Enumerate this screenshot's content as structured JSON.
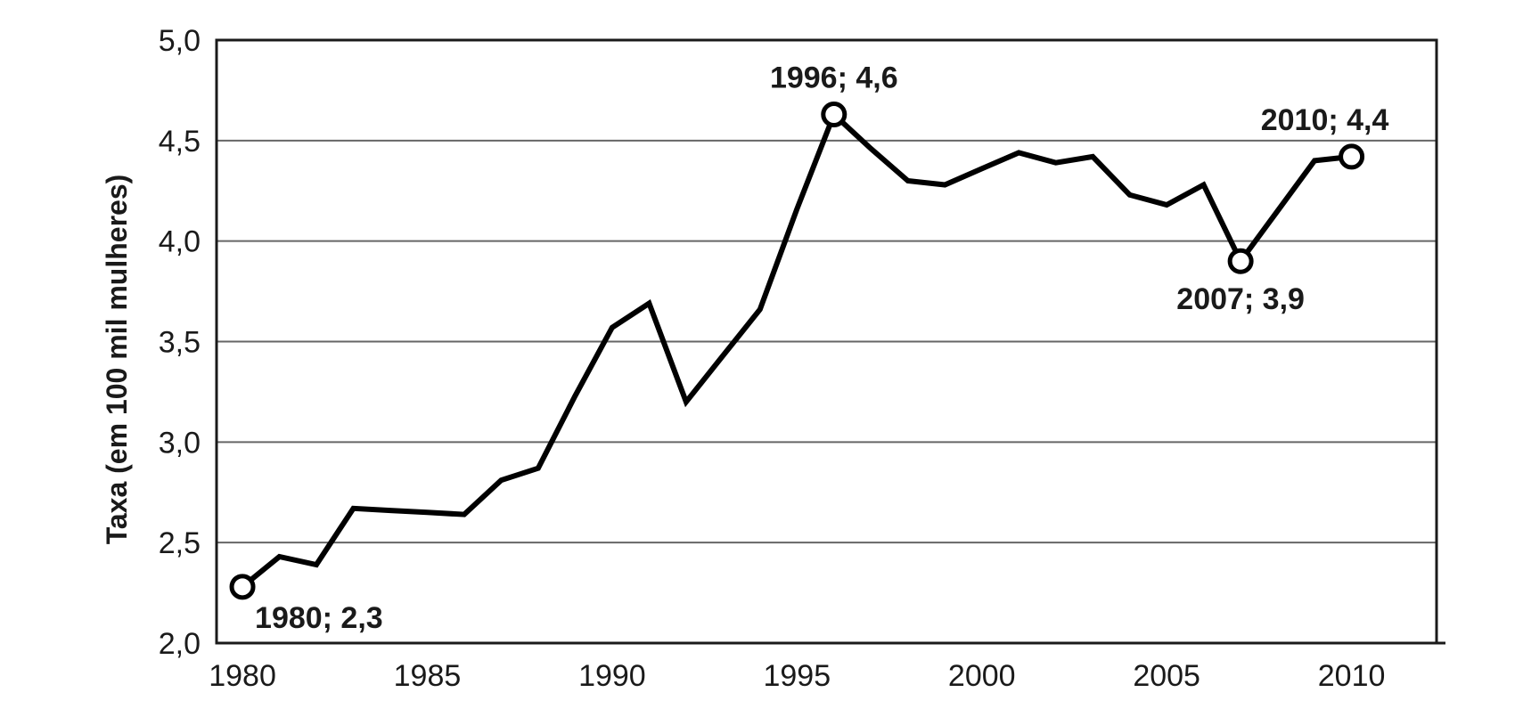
{
  "chart_data": {
    "type": "line",
    "title": "",
    "xlabel": "",
    "ylabel": "Taxa (em 100 mil mulheres)",
    "xlim": [
      1979.3,
      2012.3
    ],
    "ylim": [
      2.0,
      5.0
    ],
    "x_ticks": [
      1980,
      1985,
      1990,
      1995,
      2000,
      2005,
      2010
    ],
    "x_tick_labels": [
      "1980",
      "1985",
      "1990",
      "1995",
      "2000",
      "2005",
      "2010"
    ],
    "y_ticks": [
      2.0,
      2.5,
      3.0,
      3.5,
      4.0,
      4.5,
      5.0
    ],
    "y_tick_labels": [
      "2,0",
      "2,5",
      "3,0",
      "3,5",
      "4,0",
      "4,5",
      "5,0"
    ],
    "grid": true,
    "series": [
      {
        "x": [
          1980,
          1981,
          1982,
          1983,
          1984,
          1985,
          1986,
          1987,
          1988,
          1989,
          1990,
          1991,
          1992,
          1993,
          1994,
          1995,
          1996,
          1997,
          1998,
          1999,
          2000,
          2001,
          2002,
          2003,
          2004,
          2005,
          2006,
          2007,
          2008,
          2009,
          2010
        ],
        "values": [
          2.28,
          2.43,
          2.39,
          2.67,
          2.66,
          2.65,
          2.64,
          2.81,
          2.87,
          3.23,
          3.57,
          3.69,
          3.2,
          3.43,
          3.66,
          4.16,
          4.63,
          4.46,
          4.3,
          4.28,
          4.36,
          4.44,
          4.39,
          4.42,
          4.23,
          4.18,
          4.28,
          3.9,
          4.15,
          4.4,
          4.42
        ]
      }
    ],
    "annotations": [
      {
        "x": 1980,
        "y": 2.28,
        "text": "1980; 2,3",
        "position": "below-right"
      },
      {
        "x": 1996,
        "y": 4.63,
        "text": "1996; 4,6",
        "position": "above"
      },
      {
        "x": 2007,
        "y": 3.9,
        "text": "2007; 3,9",
        "position": "below"
      },
      {
        "x": 2010,
        "y": 4.42,
        "text": "2010; 4,4",
        "position": "above"
      }
    ]
  }
}
